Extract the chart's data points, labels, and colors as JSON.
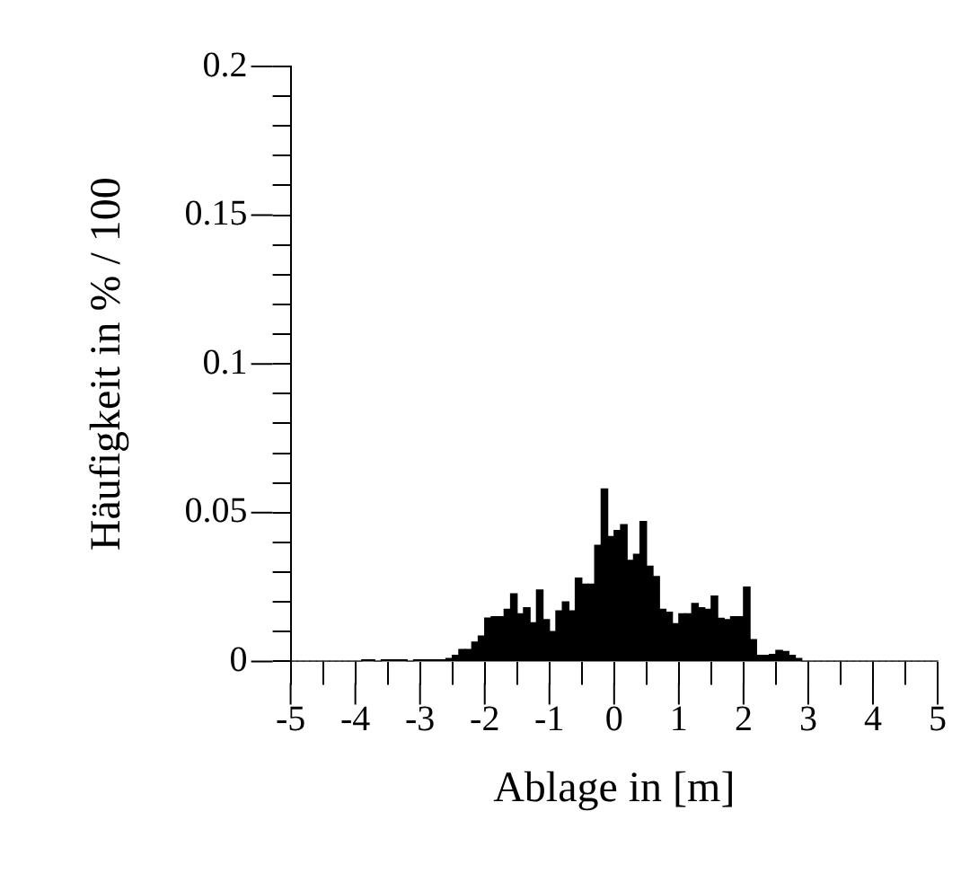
{
  "chart_data": {
    "type": "histogram",
    "xlabel": "Ablage in [m]",
    "ylabel": "Häufigkeit in % / 100",
    "color": "#000000",
    "bins": [
      -5,
      -4.9,
      -4.8,
      -4.7,
      -4.6,
      -4.5,
      -4.4,
      -4.3,
      -4.2,
      -4.1,
      -4,
      -3.9,
      -3.8,
      -3.7,
      -3.6,
      -3.5,
      -3.4,
      -3.3,
      -3.2,
      -3.1,
      -3,
      -2.9,
      -2.8,
      -2.7,
      -2.6,
      -2.5,
      -2.4,
      -2.3,
      -2.2,
      -2.1,
      -2,
      -1.9,
      -1.8,
      -1.7,
      -1.6,
      -1.5,
      -1.4,
      -1.3,
      -1.2,
      -1.1,
      -1,
      -0.9,
      -0.8,
      -0.7,
      -0.6,
      -0.5,
      -0.4,
      -0.3,
      -0.2,
      -0.1,
      0,
      0.1,
      0.2,
      0.3,
      0.4,
      0.5,
      0.6,
      0.7,
      0.8,
      0.9,
      1,
      1.1,
      1.2,
      1.3,
      1.4,
      1.5,
      1.6,
      1.7,
      1.8,
      1.9,
      2,
      2.1,
      2.2,
      2.3,
      2.4,
      2.5,
      2.6,
      2.7,
      2.8,
      2.9,
      3,
      3.1,
      3.2,
      3.3,
      3.4,
      3.5,
      3.6,
      3.7,
      3.8,
      3.9,
      4,
      4.1,
      4.2,
      4.3,
      4.4,
      4.5,
      4.6,
      4.7,
      4.8,
      4.9,
      5
    ],
    "values": [
      0,
      0,
      0,
      0,
      0,
      0,
      0,
      0,
      0,
      0,
      0,
      0.0005,
      0.0005,
      0,
      0.0005,
      0.0005,
      0.0005,
      0.0005,
      0,
      0.0005,
      0.0005,
      0.0005,
      0.0005,
      0.0005,
      0.001,
      0.002,
      0.004,
      0.004,
      0.0065,
      0.0085,
      0.0146,
      0.015,
      0.015,
      0.0175,
      0.0227,
      0.016,
      0.018,
      0.013,
      0.024,
      0.014,
      0.01,
      0.017,
      0.02,
      0.017,
      0.028,
      0.026,
      0.026,
      0.039,
      0.058,
      0.042,
      0.044,
      0.046,
      0.034,
      0.036,
      0.047,
      0.032,
      0.0285,
      0.0175,
      0.0165,
      0.0127,
      0.016,
      0.016,
      0.0195,
      0.018,
      0.0175,
      0.022,
      0.0145,
      0.014,
      0.015,
      0.015,
      0.025,
      0.0073,
      0.002,
      0.002,
      0.0023,
      0.0037,
      0.0033,
      0.002,
      0.001,
      0,
      0,
      0,
      0,
      0,
      0,
      0,
      0,
      0,
      0,
      0,
      0,
      0,
      0,
      0,
      0,
      0,
      0,
      0,
      0,
      0
    ],
    "xlim": [
      -5,
      5
    ],
    "xticks": [
      -5,
      {
        "value": -4.5,
        "label": null
      },
      -4,
      {
        "value": -3.5,
        "label": null
      },
      -3,
      {
        "value": -2.5,
        "label": null
      },
      -2,
      {
        "value": -1.5,
        "label": null
      },
      -1,
      {
        "value": -0.5,
        "label": null
      },
      0,
      {
        "value": 0.5,
        "label": null
      },
      1,
      {
        "value": 1.5,
        "label": null
      },
      2,
      {
        "value": 2.5,
        "label": null
      },
      3,
      {
        "value": 3.5,
        "label": null
      },
      4,
      {
        "value": 4.5,
        "label": null
      },
      5
    ],
    "ylim": [
      0,
      0.2
    ],
    "yticks": [
      0,
      {
        "value": 0.01,
        "label": null
      },
      {
        "value": 0.02,
        "label": null
      },
      {
        "value": 0.03,
        "label": null
      },
      {
        "value": 0.04,
        "label": null
      },
      0.05,
      {
        "value": 0.06,
        "label": null
      },
      {
        "value": 0.07,
        "label": null
      },
      {
        "value": 0.08,
        "label": null
      },
      {
        "value": 0.09,
        "label": null
      },
      0.1,
      {
        "value": 0.11,
        "label": null
      },
      {
        "value": 0.12,
        "label": null
      },
      {
        "value": 0.13,
        "label": null
      },
      {
        "value": 0.14,
        "label": null
      },
      0.15,
      {
        "value": 0.16,
        "label": null
      },
      {
        "value": 0.17,
        "label": null
      },
      {
        "value": 0.18,
        "label": null
      },
      {
        "value": 0.19,
        "label": null
      },
      0.2
    ],
    "grid": false,
    "legend": false
  }
}
